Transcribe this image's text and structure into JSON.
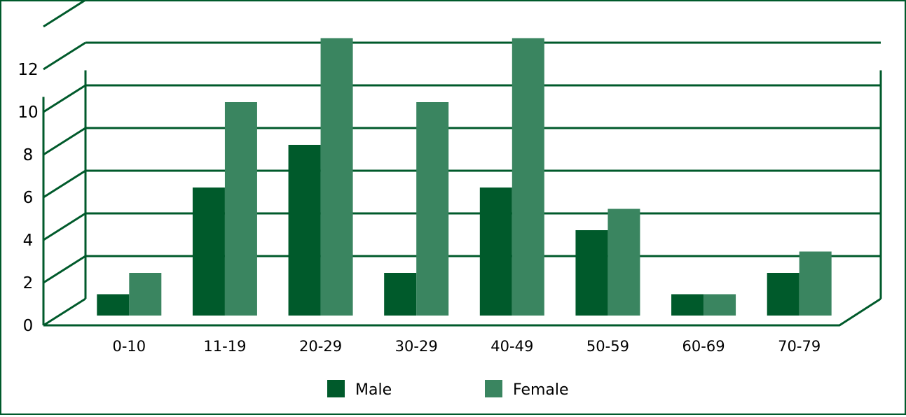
{
  "chart_data": {
    "type": "bar",
    "title": "",
    "xlabel": "",
    "ylabel": "",
    "ylim": [
      0,
      12
    ],
    "yticks": [
      0,
      2,
      4,
      6,
      8,
      10,
      12
    ],
    "categories": [
      "0-10",
      "11-19",
      "20-29",
      "30-29",
      "40-49",
      "50-59",
      "60-69",
      "70-79"
    ],
    "series": [
      {
        "name": "Male",
        "color": "#005a2b",
        "values": [
          1,
          6,
          8,
          2,
          6,
          4,
          1,
          2
        ]
      },
      {
        "name": "Female",
        "color": "#3a8560",
        "values": [
          2,
          10,
          13,
          10,
          13,
          5,
          1,
          3
        ]
      }
    ],
    "grid": true,
    "legend": "bottom-center",
    "style": "3d"
  }
}
